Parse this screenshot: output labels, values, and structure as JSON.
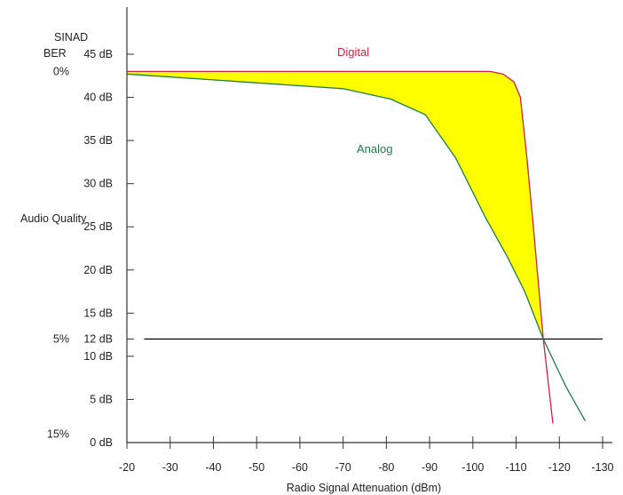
{
  "chart_data": {
    "type": "line",
    "title": "",
    "xlabel": "Radio Signal Attenuation (dBm)",
    "ylabel": "Audio Quality",
    "ylabel_header": "SINAD",
    "ber_header": "BER",
    "xlim": [
      -20,
      -130
    ],
    "ylim": [
      0,
      45
    ],
    "x_ticks": [
      -20,
      -30,
      -40,
      -50,
      -60,
      -70,
      -80,
      -90,
      -100,
      -110,
      -120,
      -130
    ],
    "y_ticks": [
      {
        "value": 0,
        "label": "0 dB"
      },
      {
        "value": 5,
        "label": "5 dB"
      },
      {
        "value": 10,
        "label": "10 dB"
      },
      {
        "value": 12,
        "label": "12 dB"
      },
      {
        "value": 15,
        "label": "15 dB"
      },
      {
        "value": 20,
        "label": "20 dB"
      },
      {
        "value": 25,
        "label": "25 dB"
      },
      {
        "value": 30,
        "label": "30 dB"
      },
      {
        "value": 35,
        "label": "35 dB"
      },
      {
        "value": 40,
        "label": "40 dB"
      },
      {
        "value": 45,
        "label": "45 dB"
      }
    ],
    "ber_ticks": [
      {
        "value": 43,
        "label": "0%"
      },
      {
        "value": 12,
        "label": "5%"
      },
      {
        "value": 1,
        "label": "15%"
      }
    ],
    "reference_line": {
      "y": 12,
      "x_start": -24,
      "x_end": -130
    },
    "series": [
      {
        "name": "Digital",
        "color": "#cc2244",
        "points": [
          [
            -20,
            43
          ],
          [
            -104,
            43
          ],
          [
            -107,
            42.7
          ],
          [
            -109.5,
            41.8
          ],
          [
            -111,
            40
          ],
          [
            -112.5,
            33
          ],
          [
            -114,
            25
          ],
          [
            -116.3,
            12
          ],
          [
            -118.5,
            2.2
          ]
        ]
      },
      {
        "name": "Analog",
        "color": "#1f7a4a",
        "points": [
          [
            -20,
            42.7
          ],
          [
            -70,
            41
          ],
          [
            -81,
            39.8
          ],
          [
            -89,
            38
          ],
          [
            -96,
            33
          ],
          [
            -103,
            26
          ],
          [
            -108,
            21.5
          ],
          [
            -112,
            17.5
          ],
          [
            -116.3,
            12
          ],
          [
            -121.5,
            6.5
          ],
          [
            -126,
            2.5
          ]
        ]
      }
    ],
    "fill_between": {
      "color": "#ffff00",
      "x_range": [
        -20,
        -116.3
      ]
    },
    "grid": false,
    "legend": "none"
  }
}
